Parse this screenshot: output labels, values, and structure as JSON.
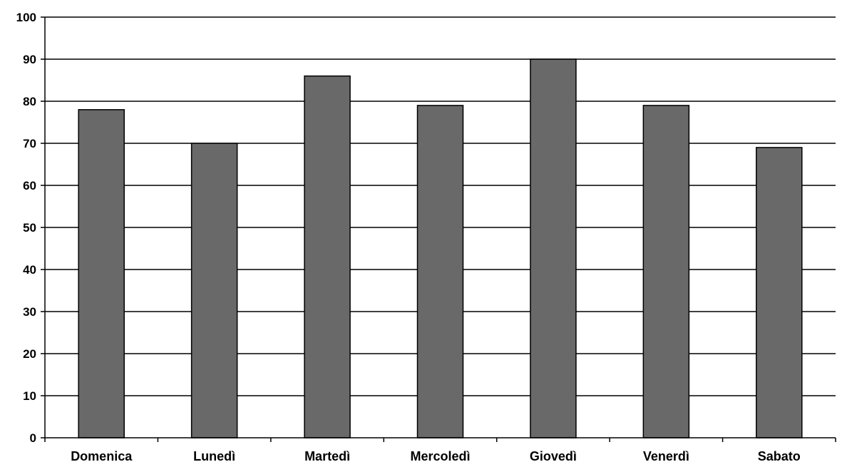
{
  "chart_data": {
    "type": "bar",
    "title": "",
    "xlabel": "",
    "ylabel": "",
    "categories": [
      "Domenica",
      "Lunedì",
      "Martedì",
      "Mercoledì",
      "Giovedì",
      "Venerdì",
      "Sabato"
    ],
    "values": [
      78,
      70,
      86,
      79,
      90,
      79,
      69
    ],
    "ylim": [
      0,
      100
    ],
    "yticks": [
      "0",
      "10",
      "20",
      "30",
      "40",
      "50",
      "60",
      "70",
      "80",
      "90",
      "100"
    ],
    "grid": true,
    "legend": "none",
    "colors": {
      "bar_fill": "#696969",
      "bar_stroke": "#000000",
      "gridline": "#000000",
      "axis": "#000000"
    }
  }
}
